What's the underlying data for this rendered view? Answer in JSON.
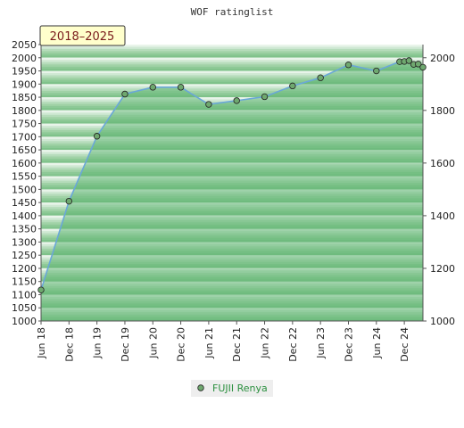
{
  "chart_data": {
    "type": "area",
    "title": "WOF ratinglist",
    "period_badge": "2018–2025",
    "ylim": [
      1000,
      2050
    ],
    "y_left_ticks": [
      1000,
      1050,
      1100,
      1150,
      1200,
      1250,
      1300,
      1350,
      1400,
      1450,
      1500,
      1550,
      1600,
      1650,
      1700,
      1750,
      1800,
      1850,
      1900,
      1950,
      2000,
      2050
    ],
    "y_right_ticks": [
      1000,
      1200,
      1400,
      1600,
      1800,
      2000
    ],
    "x_tick_labels": [
      "Jun 18",
      "Dec 18",
      "Jun 19",
      "Dec 19",
      "Jun 20",
      "Dec 20",
      "Jun 21",
      "Dec 21",
      "Jun 22",
      "Dec 22",
      "Jun 23",
      "Dec 23",
      "Jun 24",
      "Dec 24"
    ],
    "grid": true,
    "legend_position": "bottom-center",
    "series": [
      {
        "name": "FUJII Renya",
        "color": "#2a8f3e",
        "line_color": "#6aa7d8",
        "x": [
          "2018-06",
          "2018-12",
          "2019-06",
          "2019-12",
          "2020-06",
          "2020-12",
          "2021-06",
          "2021-12",
          "2022-06",
          "2022-12",
          "2023-06",
          "2023-12",
          "2024-06",
          "2024-11",
          "2024-12",
          "2025-01",
          "2025-02",
          "2025-03",
          "2025-04"
        ],
        "values": [
          1118,
          1455,
          1702,
          1862,
          1888,
          1888,
          1823,
          1837,
          1852,
          1893,
          1924,
          1973,
          1950,
          1985,
          1986,
          1989,
          1975,
          1976,
          1964
        ]
      }
    ]
  }
}
